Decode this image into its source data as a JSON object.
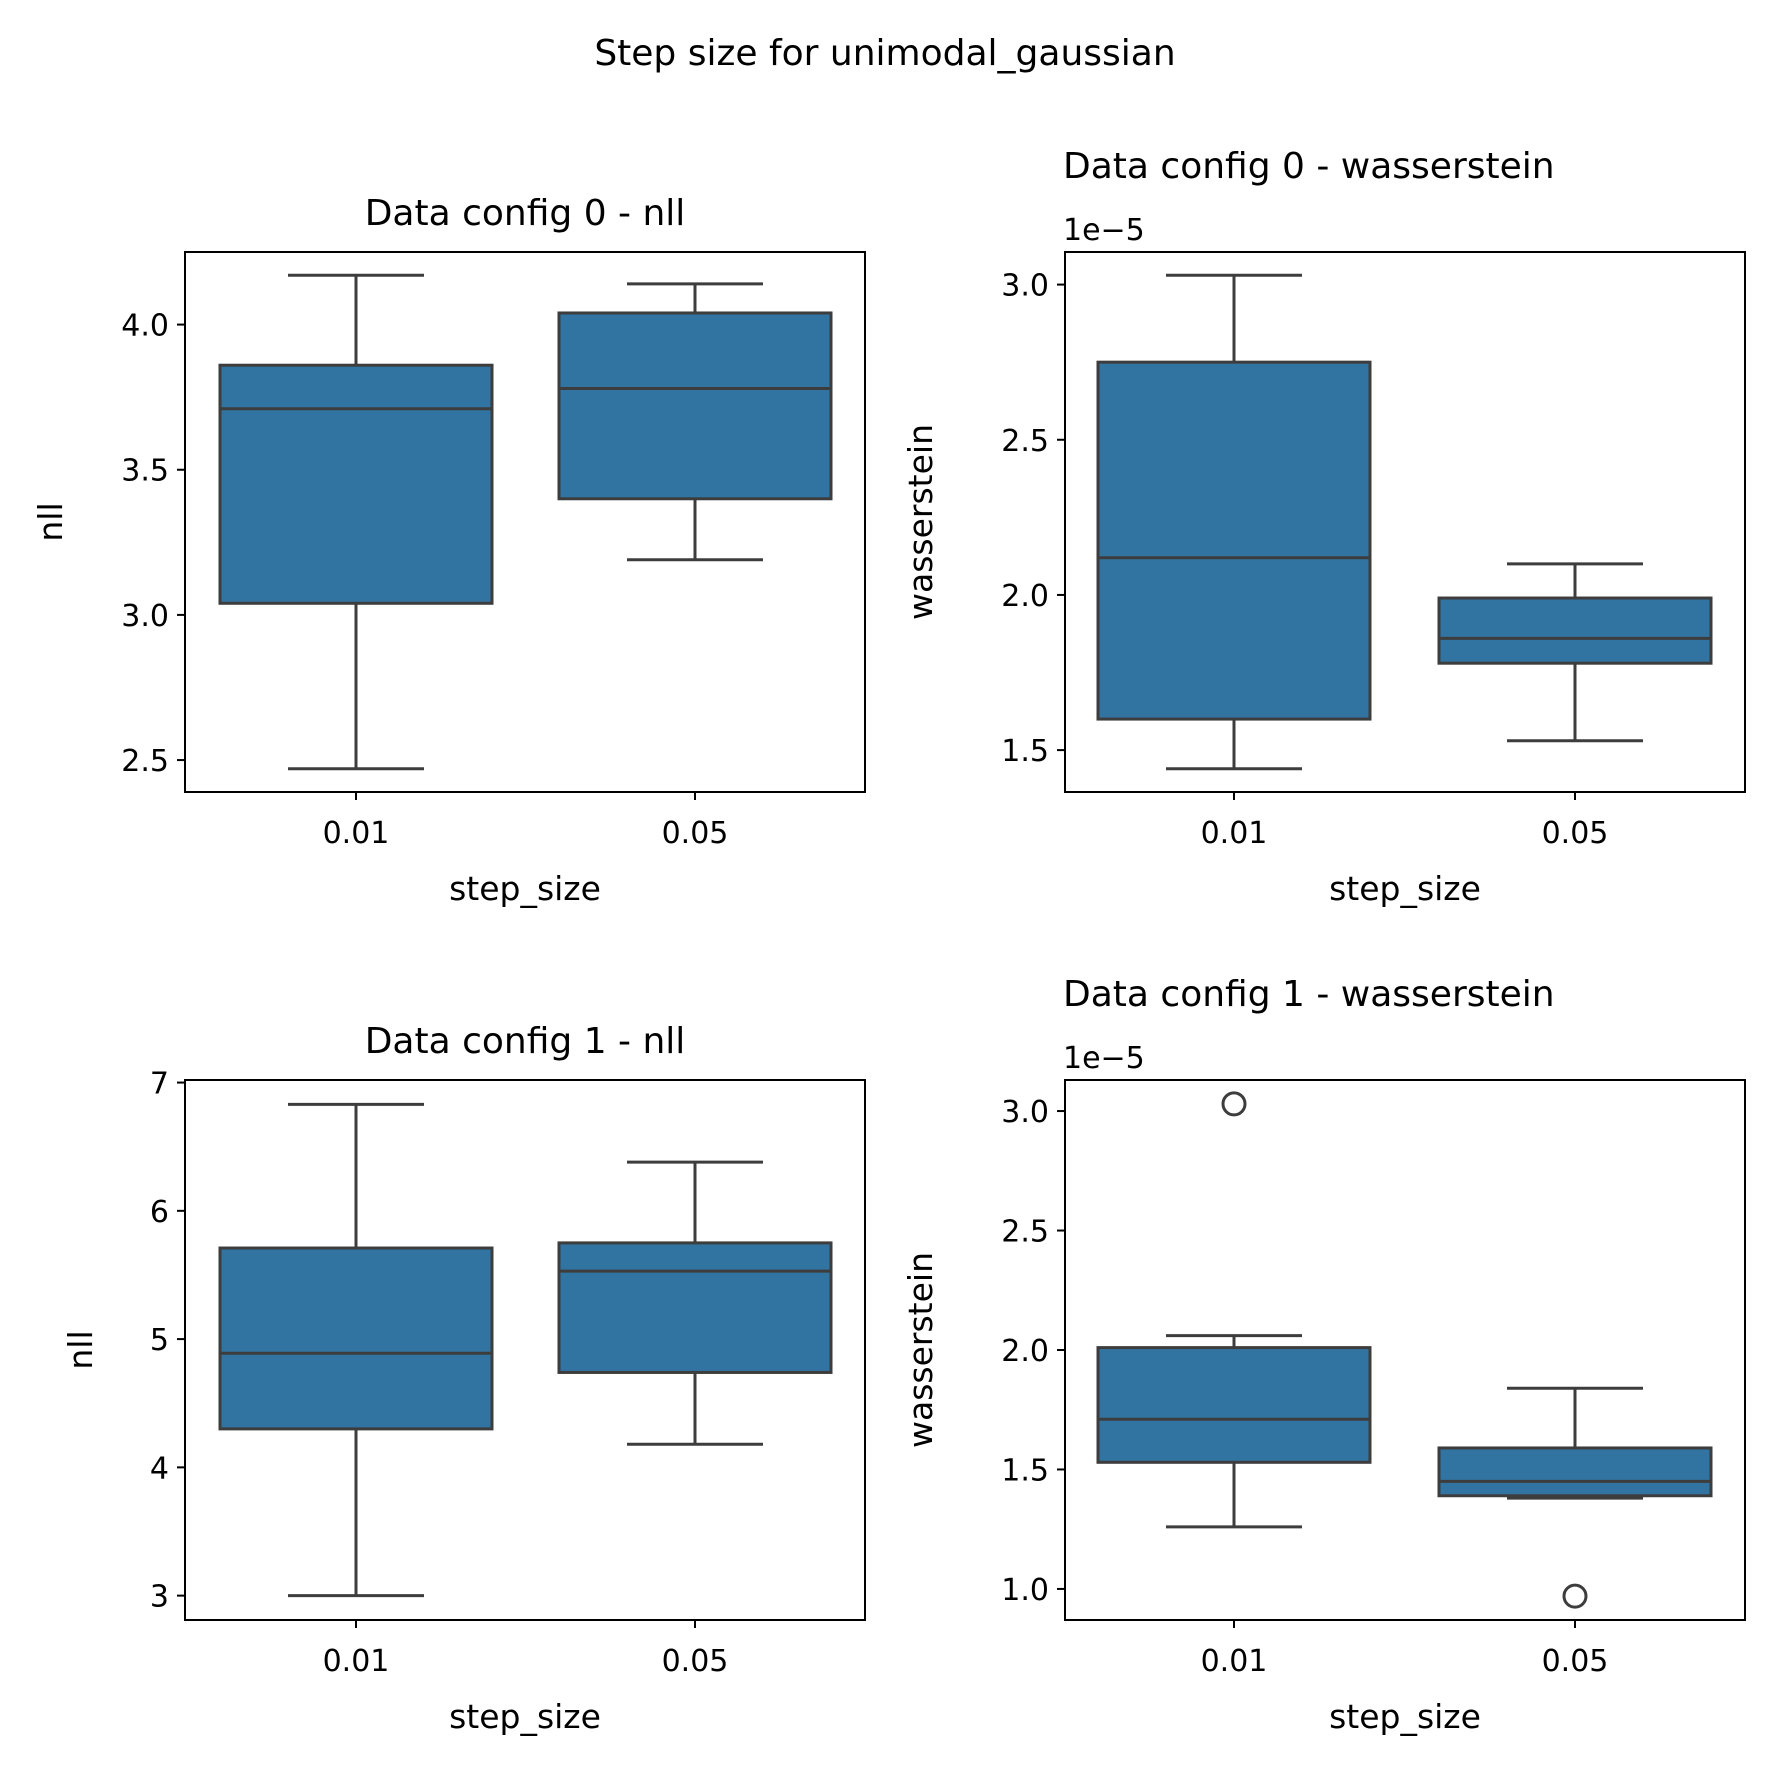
{
  "figure": {
    "suptitle": "Step size for unimodal_gaussian"
  },
  "colors": {
    "box_fill": "#3274a1",
    "line": "#3d3d3d"
  },
  "chart_data": [
    {
      "type": "box",
      "title": "Data config 0 - nll",
      "xlabel": "step_size",
      "ylabel": "nll",
      "offset_text": "",
      "categories": [
        "0.01",
        "0.05"
      ],
      "ylim": [
        2.39,
        4.25
      ],
      "yticks": [
        2.5,
        3.0,
        3.5,
        4.0
      ],
      "ytick_labels": [
        "2.5",
        "3.0",
        "3.5",
        "4.0"
      ],
      "boxes": [
        {
          "whislo": 2.47,
          "q1": 3.04,
          "med": 3.71,
          "q3": 3.86,
          "whishi": 4.17,
          "fliers": []
        },
        {
          "whislo": 3.19,
          "q1": 3.4,
          "med": 3.78,
          "q3": 4.04,
          "whishi": 4.14,
          "fliers": []
        }
      ]
    },
    {
      "type": "box",
      "title": "Data config 0 - wasserstein",
      "xlabel": "step_size",
      "ylabel": "wasserstein",
      "offset_text": "1e−5",
      "categories": [
        "0.01",
        "0.05"
      ],
      "ylim": [
        1.365,
        3.105
      ],
      "yticks": [
        1.5,
        2.0,
        2.5,
        3.0
      ],
      "ytick_labels": [
        "1.5",
        "2.0",
        "2.5",
        "3.0"
      ],
      "boxes": [
        {
          "whislo": 1.44,
          "q1": 1.6,
          "med": 2.12,
          "q3": 2.75,
          "whishi": 3.03,
          "fliers": []
        },
        {
          "whislo": 1.53,
          "q1": 1.78,
          "med": 1.86,
          "q3": 1.99,
          "whishi": 2.1,
          "fliers": []
        }
      ]
    },
    {
      "type": "box",
      "title": "Data config 1 - nll",
      "xlabel": "step_size",
      "ylabel": "nll",
      "offset_text": "",
      "categories": [
        "0.01",
        "0.05"
      ],
      "ylim": [
        2.81,
        7.02
      ],
      "yticks": [
        3,
        4,
        5,
        6,
        7
      ],
      "ytick_labels": [
        "3",
        "4",
        "5",
        "6",
        "7"
      ],
      "boxes": [
        {
          "whislo": 3.0,
          "q1": 4.3,
          "med": 4.89,
          "q3": 5.71,
          "whishi": 6.83,
          "fliers": []
        },
        {
          "whislo": 4.18,
          "q1": 4.74,
          "med": 5.53,
          "q3": 5.75,
          "whishi": 6.38,
          "fliers": []
        }
      ]
    },
    {
      "type": "box",
      "title": "Data config 1 - wasserstein",
      "xlabel": "step_size",
      "ylabel": "wasserstein",
      "offset_text": "1e−5",
      "categories": [
        "0.01",
        "0.05"
      ],
      "ylim": [
        0.87,
        3.13
      ],
      "yticks": [
        1.0,
        1.5,
        2.0,
        2.5,
        3.0
      ],
      "ytick_labels": [
        "1.0",
        "1.5",
        "2.0",
        "2.5",
        "3.0"
      ],
      "boxes": [
        {
          "whislo": 1.26,
          "q1": 1.53,
          "med": 1.71,
          "q3": 2.01,
          "whishi": 2.06,
          "fliers": [
            3.03
          ]
        },
        {
          "whislo": 1.38,
          "q1": 1.39,
          "med": 1.45,
          "q3": 1.59,
          "whishi": 1.84,
          "fliers": [
            0.97
          ]
        }
      ]
    }
  ]
}
